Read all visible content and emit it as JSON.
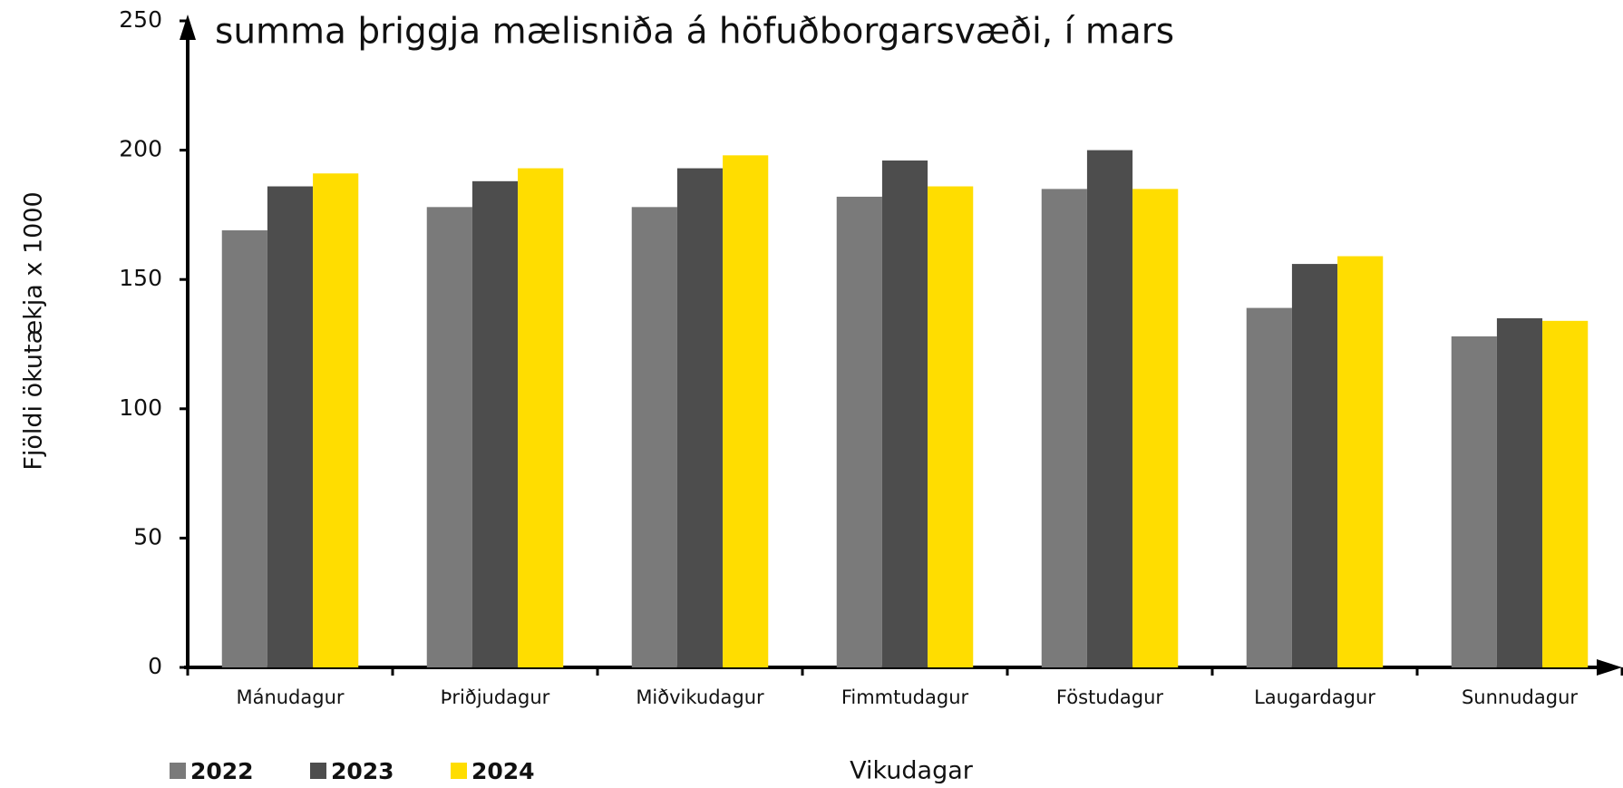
{
  "chart_data": {
    "type": "bar",
    "title": "summa þriggja mælisniða á höfuðborgarsvæði, í mars",
    "x_label": "Vikudagar",
    "y_label": "Fjöldi ökutækja x 1000",
    "categories": [
      "Mánudagur",
      "Þriðjudagur",
      "Miðvikudagur",
      "Fimmtudagur",
      "Föstudagur",
      "Laugardagur",
      "Sunnudagur"
    ],
    "series": [
      {
        "name": "2022",
        "color": "#7a7a7a",
        "values": [
          169,
          178,
          178,
          182,
          185,
          139,
          128
        ]
      },
      {
        "name": "2023",
        "color": "#4d4d4d",
        "values": [
          186,
          188,
          193,
          196,
          200,
          156,
          135
        ]
      },
      {
        "name": "2024",
        "color": "#ffdd00",
        "values": [
          191,
          193,
          198,
          186,
          185,
          159,
          134
        ]
      }
    ],
    "ylim": [
      0,
      250
    ],
    "yticks": [
      0,
      50,
      100,
      150,
      200,
      250
    ],
    "grid": false,
    "legend": "bottom-left"
  }
}
